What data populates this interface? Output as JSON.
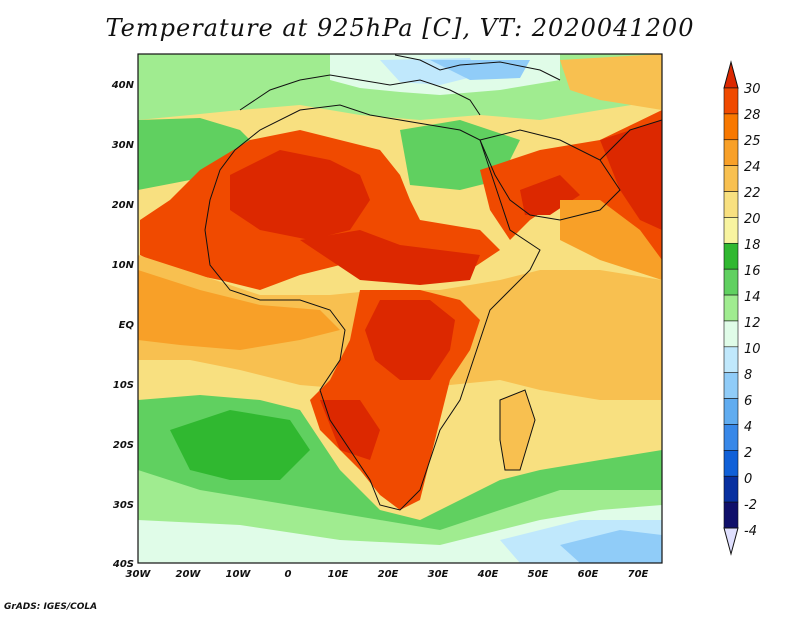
{
  "title": "Temperature at 925hPa [C], VT: 2020041200",
  "credit": "GrADS: IGES/COLA",
  "map": {
    "lat_labels": [
      "40N",
      "30N",
      "20N",
      "10N",
      "EQ",
      "10S",
      "20S",
      "30S",
      "40S"
    ],
    "lon_labels": [
      "30W",
      "20W",
      "10W",
      "0",
      "10E",
      "20E",
      "30E",
      "40E",
      "50E",
      "60E",
      "70E"
    ]
  },
  "colorbar": {
    "labels": [
      "30",
      "28",
      "25",
      "24",
      "22",
      "20",
      "18",
      "16",
      "14",
      "12",
      "10",
      "8",
      "6",
      "4",
      "2",
      "0",
      "-2",
      "-4"
    ],
    "colors": [
      "#dc2800",
      "#f04a00",
      "#f87800",
      "#f8a028",
      "#f8c050",
      "#f8e080",
      "#f8f4a0",
      "#30b830",
      "#60d060",
      "#a0ec90",
      "#e0fce8",
      "#c0e8fc",
      "#90ccf8",
      "#60acf0",
      "#3888e8",
      "#1060d8",
      "#0830a0",
      "#10106a",
      "#e0e0ff"
    ]
  }
}
